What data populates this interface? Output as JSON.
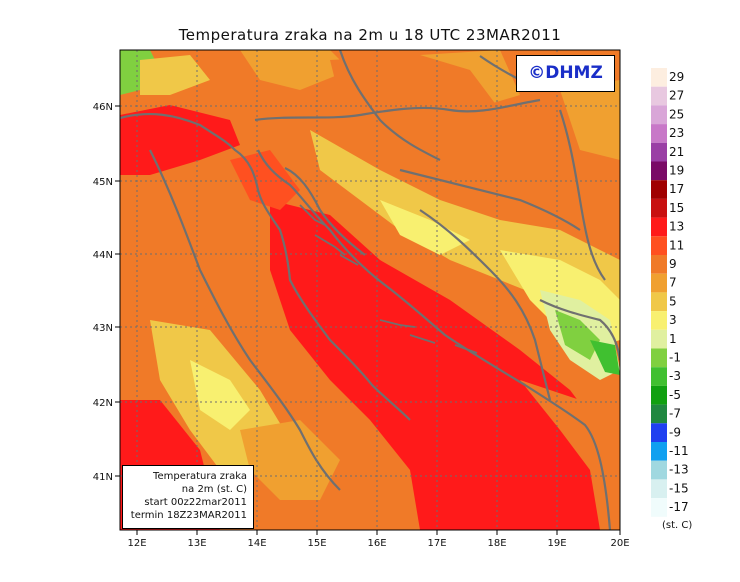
{
  "title": "Temperatura zraka na 2m u 18 UTC 23MAR2011",
  "brand": "©DHMZ",
  "info_box": {
    "line1": "Temperatura zraka",
    "line2": "na 2m (st. C)",
    "line3": "start 00z22mar2011",
    "line4": "termin 18Z23MAR2011"
  },
  "map": {
    "lon_labels": [
      "12E",
      "13E",
      "14E",
      "15E",
      "16E",
      "17E",
      "18E",
      "19E",
      "20E"
    ],
    "lat_labels": [
      "46N",
      "45N",
      "44N",
      "43N",
      "42N",
      "41N"
    ]
  },
  "colorbar": {
    "labels": [
      "29",
      "27",
      "25",
      "23",
      "21",
      "19",
      "17",
      "15",
      "13",
      "11",
      "9",
      "7",
      "5",
      "3",
      "1",
      "-1",
      "-3",
      "-5",
      "-7",
      "-9",
      "-11",
      "-13",
      "-15",
      "-17"
    ],
    "unit": "(st. C)",
    "colors": [
      "#fdeee0",
      "#e8c8e0",
      "#d9a6d8",
      "#c878c8",
      "#9a3fa5",
      "#7a0a66",
      "#a00000",
      "#c81010",
      "#ff1a1a",
      "#ff5020",
      "#f07a28",
      "#f0a030",
      "#f0c848",
      "#f8f070",
      "#e0f0a0",
      "#80d040",
      "#40c030",
      "#10a010",
      "#208840",
      "#2040f0",
      "#10a0f0",
      "#a0d8e0",
      "#d8f0f0",
      "#f0fcfc"
    ]
  }
}
